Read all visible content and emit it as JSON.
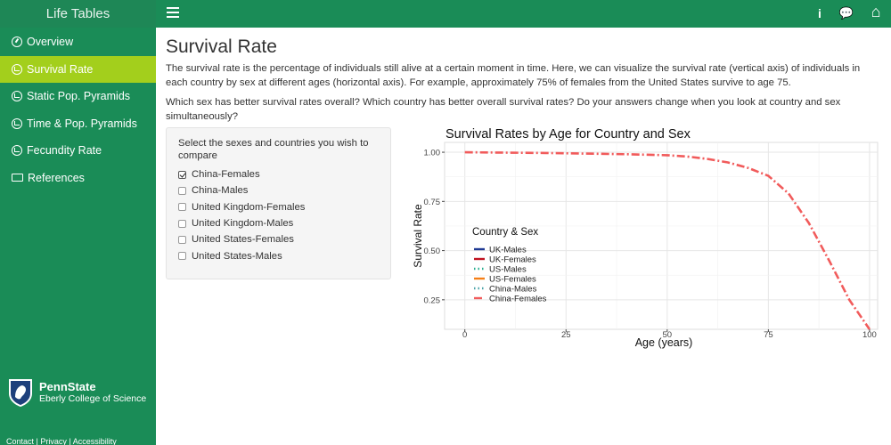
{
  "app": {
    "title": "Life Tables"
  },
  "topbar": {
    "icons": [
      {
        "name": "info-icon",
        "glyph": "i"
      },
      {
        "name": "comments-icon",
        "glyph": "💬"
      },
      {
        "name": "home-icon",
        "glyph": "⌂"
      }
    ]
  },
  "sidebar": {
    "items": [
      {
        "label": "Overview",
        "icon": "dashboard-icon",
        "active": false
      },
      {
        "label": "Survival Rate",
        "icon": "history-icon",
        "active": true
      },
      {
        "label": "Static Pop. Pyramids",
        "icon": "history-icon",
        "active": false
      },
      {
        "label": "Time & Pop. Pyramids",
        "icon": "history-icon",
        "active": false
      },
      {
        "label": "Fecundity Rate",
        "icon": "history-icon",
        "active": false
      },
      {
        "label": "References",
        "icon": "book-icon",
        "active": false
      }
    ],
    "brand": {
      "name": "PennState",
      "sub": "Eberly College of Science"
    },
    "footer": {
      "contact": "Contact",
      "privacy": "Privacy",
      "accessibility": "Accessibility",
      "sep": "|"
    }
  },
  "main": {
    "title": "Survival Rate",
    "para1": "The survival rate is the percentage of individuals still alive at a certain moment in time. Here, we can visualize the survival rate (vertical axis) of individuals in each country by sex at different ages (horizontal axis). For example, approximately 75% of females from the United States survive to age 75.",
    "para2": "Which sex has better survival rates overall? Which country has better overall survival rates? Do your answers change when you look at country and sex simultaneously?"
  },
  "selector": {
    "label": "Select the sexes and countries you wish to compare",
    "options": [
      {
        "label": "China-Females",
        "checked": true
      },
      {
        "label": "China-Males",
        "checked": false
      },
      {
        "label": "United Kingdom-Females",
        "checked": false
      },
      {
        "label": "United Kingdom-Males",
        "checked": false
      },
      {
        "label": "United States-Females",
        "checked": false
      },
      {
        "label": "United States-Males",
        "checked": false
      }
    ]
  },
  "chart_data": {
    "type": "line",
    "title": "Survival Rates by Age for Country and Sex",
    "xlabel": "Age (years)",
    "ylabel": "Survival Rate",
    "xlim": [
      -5,
      102
    ],
    "ylim": [
      0.1,
      1.05
    ],
    "xticks": [
      0,
      25,
      50,
      75,
      100
    ],
    "xtick_labels": [
      "0",
      "25",
      "50",
      "75",
      "100"
    ],
    "yticks": [
      0.25,
      0.5,
      0.75,
      1.0
    ],
    "ytick_labels": [
      "0.25",
      "0.50",
      "0.75",
      "1.00"
    ],
    "grid": true,
    "legend": {
      "title": "Country & Sex",
      "position": "inside-left",
      "entries": [
        {
          "name": "UK-Males",
          "color": "#1f3a93",
          "style": "solid"
        },
        {
          "name": "UK-Females",
          "color": "#c0121f",
          "style": "solid"
        },
        {
          "name": "US-Males",
          "color": "#27ae8f",
          "style": "dot"
        },
        {
          "name": "US-Females",
          "color": "#f57f17",
          "style": "solid"
        },
        {
          "name": "China-Males",
          "color": "#4aa3a8",
          "style": "dot"
        },
        {
          "name": "China-Females",
          "color": "#f15b5b",
          "style": "dashdot"
        }
      ]
    },
    "series": [
      {
        "name": "China-Females",
        "color": "#f15b5b",
        "style": "dashdot",
        "x": [
          0,
          10,
          20,
          30,
          40,
          50,
          55,
          60,
          65,
          70,
          75,
          80,
          85,
          90,
          95,
          100
        ],
        "y": [
          1.0,
          0.998,
          0.996,
          0.993,
          0.99,
          0.985,
          0.978,
          0.966,
          0.948,
          0.92,
          0.88,
          0.79,
          0.64,
          0.45,
          0.25,
          0.1
        ]
      }
    ]
  }
}
